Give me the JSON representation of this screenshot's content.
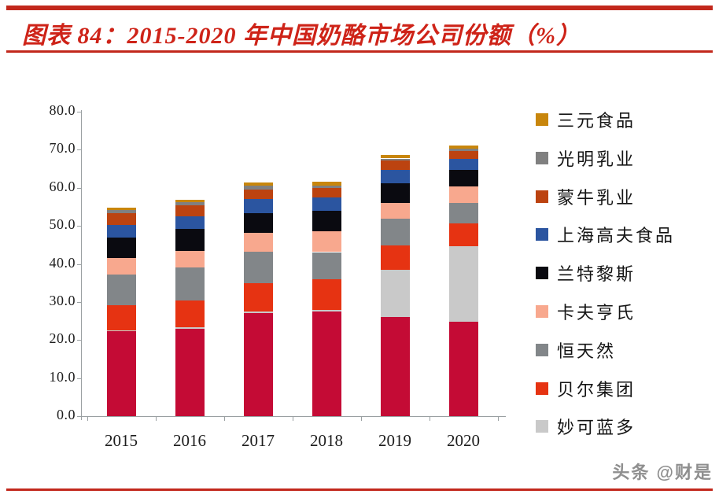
{
  "header": {
    "title": "图表 84：2015-2020 年中国奶酪市场公司份额（%）"
  },
  "watermark": "头条 @财是",
  "colors": {
    "accent_red": "#C2281C",
    "title_red": "#CE2318",
    "axis_gray": "#9AA0A2"
  },
  "chart_data": {
    "type": "bar",
    "stacked": true,
    "title": "2015-2020 年中国奶酪市场公司份额（%）",
    "categories": [
      "2015",
      "2016",
      "2017",
      "2018",
      "2019",
      "2020"
    ],
    "series": [
      {
        "name": "",
        "in_legend": false,
        "color": "#C40B35",
        "values": [
          22.3,
          23.0,
          27.0,
          27.4,
          26.0,
          24.9
        ]
      },
      {
        "name": "妙可蓝多",
        "in_legend": true,
        "color": "#C9C9C9",
        "values": [
          0.3,
          0.3,
          0.4,
          0.5,
          12.4,
          19.8
        ]
      },
      {
        "name": "贝尔集团",
        "in_legend": true,
        "color": "#E63312",
        "values": [
          6.6,
          7.0,
          7.6,
          8.0,
          6.5,
          5.9
        ]
      },
      {
        "name": "恒天然",
        "in_legend": true,
        "color": "#828689",
        "values": [
          8.0,
          8.8,
          8.3,
          7.2,
          6.9,
          5.4
        ]
      },
      {
        "name": "卡夫亨氏",
        "in_legend": true,
        "color": "#F8A88E",
        "values": [
          4.4,
          4.4,
          4.8,
          5.4,
          4.3,
          4.3
        ]
      },
      {
        "name": "兰特黎斯",
        "in_legend": true,
        "color": "#0A0A10",
        "values": [
          5.4,
          5.6,
          5.3,
          5.4,
          5.0,
          4.3
        ]
      },
      {
        "name": "上海高夫食品",
        "in_legend": true,
        "color": "#2B55A0",
        "values": [
          3.3,
          3.4,
          3.7,
          3.5,
          3.5,
          2.9
        ]
      },
      {
        "name": "蒙牛乳业",
        "in_legend": true,
        "color": "#BC4310",
        "values": [
          3.1,
          2.9,
          2.5,
          2.5,
          2.5,
          2.1
        ]
      },
      {
        "name": "光明乳业",
        "in_legend": true,
        "color": "#808080",
        "values": [
          0.8,
          0.8,
          0.9,
          0.7,
          0.6,
          0.6
        ]
      },
      {
        "name": "三元食品",
        "in_legend": true,
        "color": "#C8860C",
        "values": [
          0.6,
          0.7,
          0.9,
          1.0,
          1.0,
          1.0
        ]
      }
    ],
    "legend_order_top_to_bottom": [
      "三元食品",
      "光明乳业",
      "蒙牛乳业",
      "上海高夫食品",
      "兰特黎斯",
      "卡夫亨氏",
      "恒天然",
      "贝尔集团",
      "妙可蓝多"
    ],
    "legend_position": "right",
    "xlabel": "",
    "ylabel": "",
    "ylim": [
      0,
      80
    ],
    "ytick_labels": [
      "80.0",
      "70.0",
      "60.0",
      "50.0",
      "40.0",
      "30.0",
      "20.0",
      "10.0",
      "0.0"
    ],
    "grid": false
  }
}
